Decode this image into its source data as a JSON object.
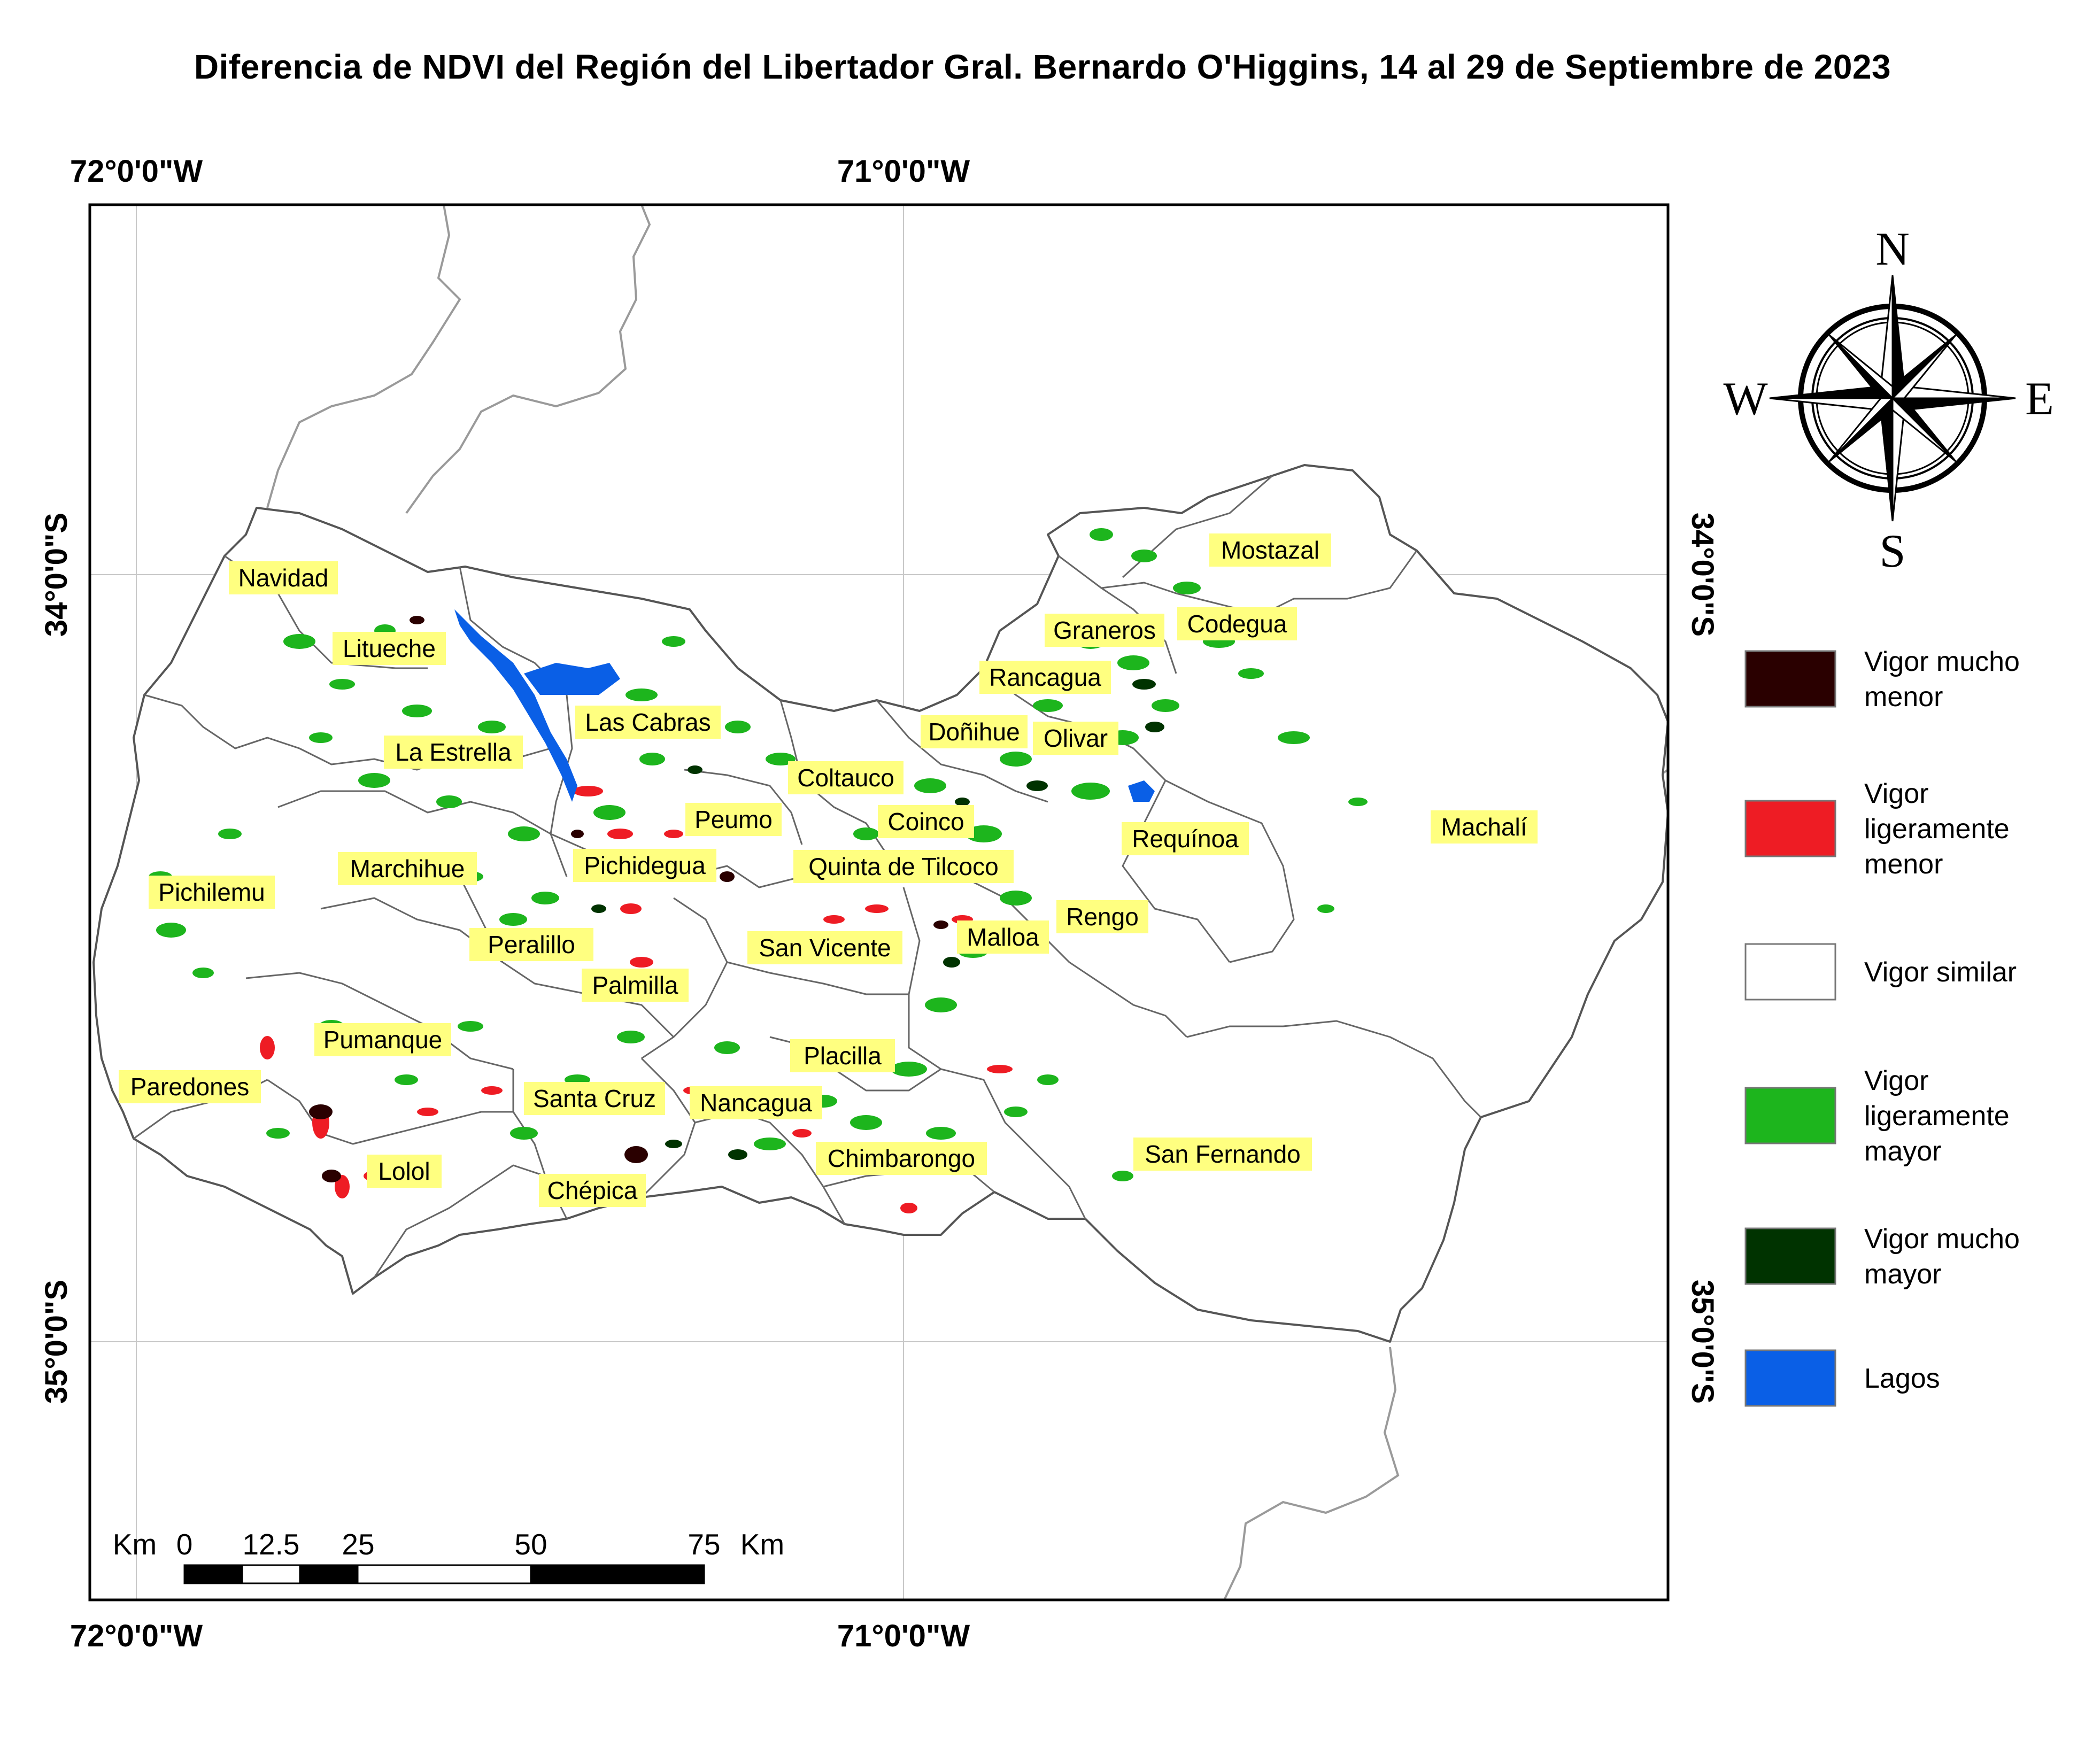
{
  "title": "Diferencia de NDVI del Región del Libertador Gral. Bernardo O'Higgins, 14 al 29 de Septiembre de 2023",
  "coords": {
    "lon_west": "72°0'0\"W",
    "lon_east": "71°0'0\"W",
    "lat_north": "34°0'0\"S",
    "lat_south": "35°0'0\"S"
  },
  "compass": {
    "n": "N",
    "s": "S",
    "e": "E",
    "w": "W"
  },
  "scale_bar": {
    "unit_left": "Km",
    "unit_right": "Km",
    "ticks": [
      "0",
      "12.5",
      "25",
      "50",
      "75"
    ]
  },
  "legend": [
    {
      "lines": [
        "Vigor mucho",
        "menor"
      ],
      "color": "#2a0000"
    },
    {
      "lines": [
        "Vigor",
        "ligeramente",
        "menor"
      ],
      "color": "#ee1c24"
    },
    {
      "lines": [
        "Vigor similar"
      ],
      "color": "#ffffff"
    },
    {
      "lines": [
        "Vigor",
        "ligeramente",
        "mayor"
      ],
      "color": "#1db51d"
    },
    {
      "lines": [
        "Vigor mucho",
        "mayor"
      ],
      "color": "#003300"
    },
    {
      "lines": [
        "Lagos"
      ],
      "color": "#0a5fe6"
    }
  ],
  "municipalities": [
    "Navidad",
    "Litueche",
    "La Estrella",
    "Las Cabras",
    "Pichilemu",
    "Marchihue",
    "Pichidegua",
    "Peumo",
    "Coltauco",
    "Doñihue",
    "Olivar",
    "Graneros",
    "Codegua",
    "Mostazal",
    "Rancagua",
    "Coinco",
    "Quinta de Tilcoco",
    "Requínoa",
    "Machalí",
    "Rengo",
    "Malloa",
    "San Vicente",
    "Peralillo",
    "Palmilla",
    "Pumanque",
    "Paredones",
    "Santa Cruz",
    "Nancagua",
    "Placilla",
    "Chimbarongo",
    "Lolol",
    "Chépica",
    "San Fernando"
  ]
}
